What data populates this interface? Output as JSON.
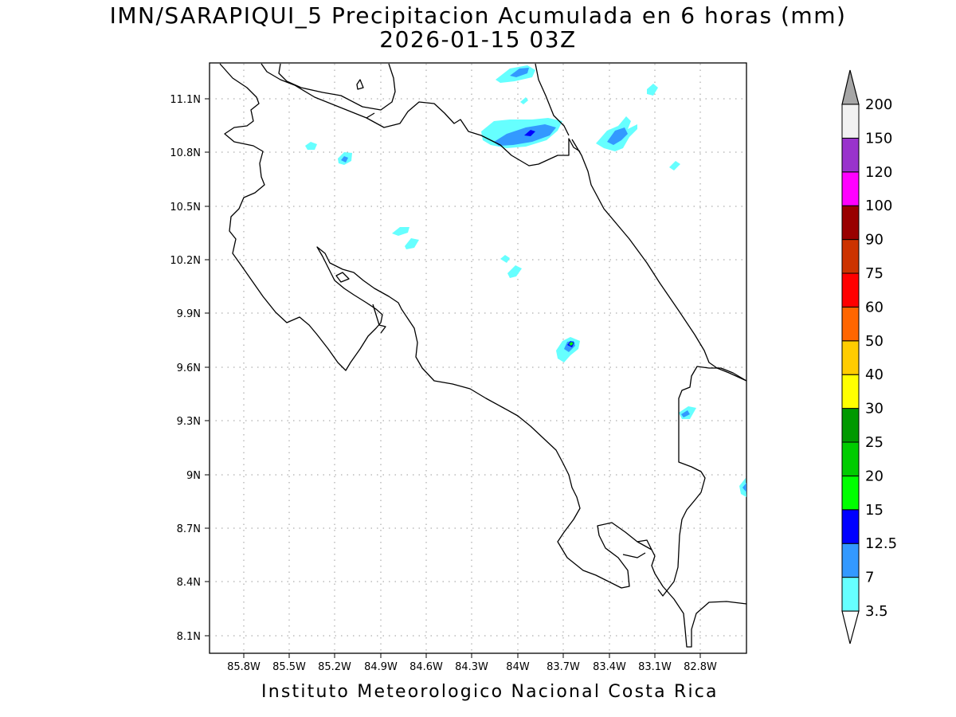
{
  "title": {
    "line1": "IMN/SARAPIQUI_5 Precipitacion Acumulada en 6 horas (mm)",
    "line2": "2026-01-15 03Z"
  },
  "footer": "Instituto Meteorologico Nacional Costa Rica",
  "map": {
    "lon_range": [
      -86.05,
      -82.55
    ],
    "lat_range": [
      8.0,
      11.3
    ],
    "x_ticks": [
      "85.8W",
      "85.5W",
      "85.2W",
      "84.9W",
      "84.6W",
      "84.3W",
      "84W",
      "83.7W",
      "83.4W",
      "83.1W",
      "82.8W"
    ],
    "y_ticks": [
      "11.1N",
      "10.8N",
      "10.5N",
      "10.2N",
      "9.9N",
      "9.6N",
      "9.3N",
      "9N",
      "8.7N",
      "8.4N",
      "8.1N"
    ],
    "grid": "dotted"
  },
  "colorbar": {
    "levels": [
      "3.5",
      "7",
      "12.5",
      "15",
      "20",
      "25",
      "30",
      "40",
      "50",
      "60",
      "75",
      "90",
      "100",
      "120",
      "150",
      "200"
    ],
    "colors": [
      "#66ffff",
      "#3399ff",
      "#0000ff",
      "#00ff00",
      "#00cc00",
      "#009900",
      "#ffff00",
      "#ffcc00",
      "#ff6600",
      "#ff0000",
      "#cc3300",
      "#990000",
      "#ff00ff",
      "#9933cc",
      "#f2f2f2"
    ],
    "over_color": "#a6a6a6",
    "under_color": "#ffffff"
  },
  "colors": {
    "light_cyan": "#66ffff",
    "medium_blue": "#3399ff",
    "dark_blue": "#0000ff",
    "green": "#00ff00"
  }
}
